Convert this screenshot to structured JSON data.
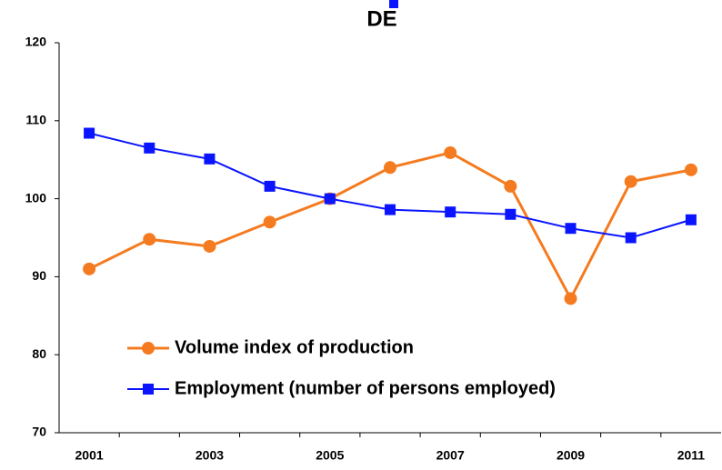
{
  "chart_data": {
    "type": "line",
    "title": "DE",
    "categories": [
      "2001",
      null,
      "2003",
      null,
      "2005",
      null,
      "2007",
      null,
      "2009",
      null,
      "2011"
    ],
    "series": [
      {
        "name": "Volume index of production",
        "color": "#f47b20",
        "marker": "circle",
        "values": [
          91.0,
          94.8,
          93.9,
          97.0,
          100.0,
          104.0,
          105.9,
          101.6,
          87.2,
          102.2,
          103.7
        ]
      },
      {
        "name": "Employment (number of persons employed)",
        "color": "#0a14ff",
        "marker": "square",
        "values": [
          108.4,
          106.5,
          105.1,
          101.6,
          100.0,
          98.6,
          98.3,
          98.0,
          96.2,
          95.0,
          97.3
        ]
      }
    ],
    "ylim": [
      70,
      120
    ],
    "yticks": [
      70,
      80,
      90,
      100,
      110,
      120
    ],
    "grid": false
  }
}
